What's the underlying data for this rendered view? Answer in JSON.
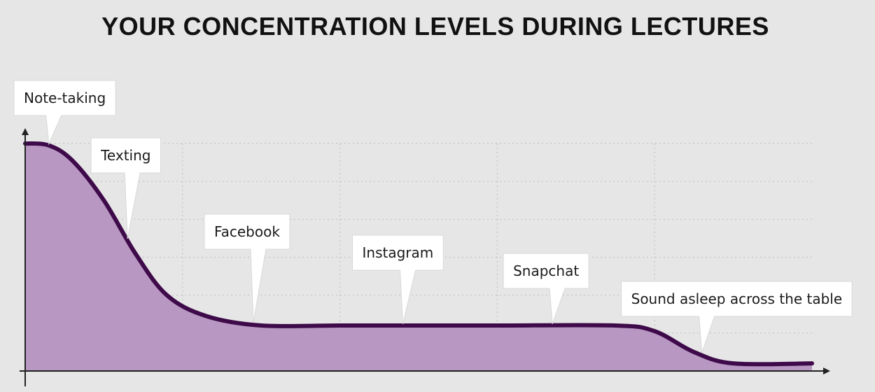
{
  "chart_data": {
    "type": "area",
    "title": "YOUR CONCENTRATION LEVELS DURING LECTURES",
    "xlabel": "",
    "ylabel": "",
    "grid": true,
    "ylim": [
      0,
      6
    ],
    "xlim": [
      0,
      10
    ],
    "series": [
      {
        "values": [
          {
            "x": 0.0,
            "y": 6.0
          },
          {
            "x": 0.3,
            "y": 5.95
          },
          {
            "x": 0.6,
            "y": 5.55
          },
          {
            "x": 1.0,
            "y": 4.5
          },
          {
            "x": 1.4,
            "y": 3.1
          },
          {
            "x": 1.8,
            "y": 2.0
          },
          {
            "x": 2.3,
            "y": 1.45
          },
          {
            "x": 3.0,
            "y": 1.2
          },
          {
            "x": 4.0,
            "y": 1.2
          },
          {
            "x": 5.0,
            "y": 1.2
          },
          {
            "x": 6.0,
            "y": 1.2
          },
          {
            "x": 7.5,
            "y": 1.2
          },
          {
            "x": 8.0,
            "y": 1.05
          },
          {
            "x": 8.5,
            "y": 0.5
          },
          {
            "x": 9.0,
            "y": 0.2
          },
          {
            "x": 10.0,
            "y": 0.2
          }
        ]
      }
    ],
    "annotations": [
      {
        "text": "Note-taking",
        "x": 0.3
      },
      {
        "text": "Texting",
        "x": 1.3
      },
      {
        "text": "Facebook",
        "x": 2.9
      },
      {
        "text": "Instagram",
        "x": 4.8
      },
      {
        "text": "Snapchat",
        "x": 6.7
      },
      {
        "text": "Sound asleep across the table",
        "x": 8.6
      }
    ]
  },
  "colors": {
    "background": "#e6e6e6",
    "line": "#3e0a4a",
    "fill": "#b898c2",
    "grid": "#c4c4c4",
    "axis": "#222222",
    "callout_bg": "#ffffff"
  }
}
